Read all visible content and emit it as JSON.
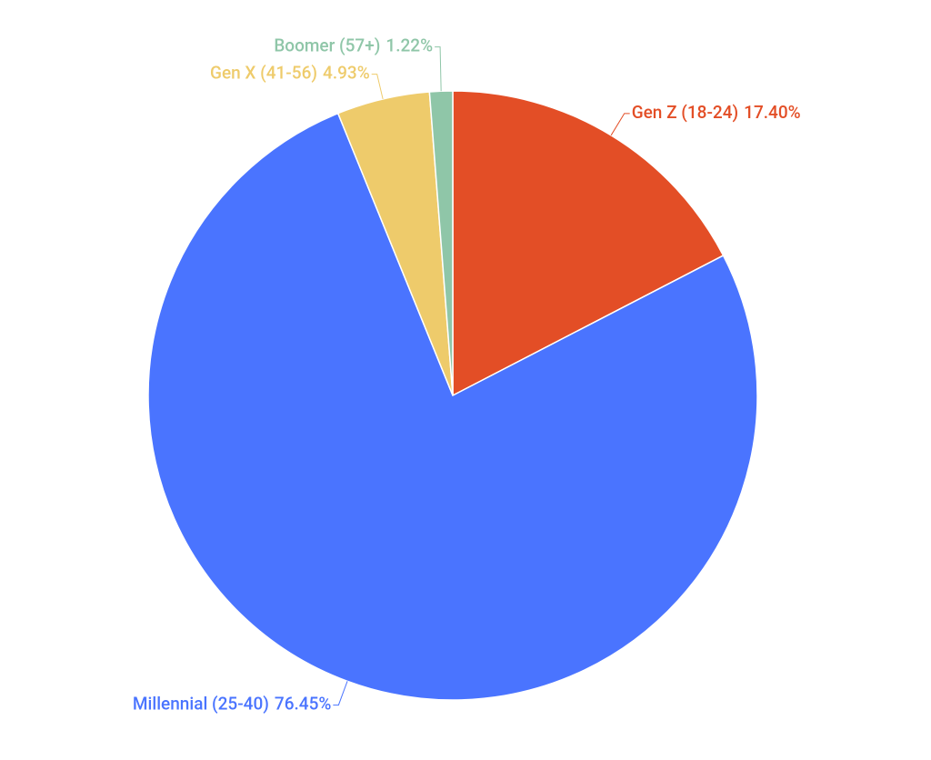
{
  "chart_data": {
    "type": "pie",
    "categories": [
      "Gen Z (18-24)",
      "Millennial (25-40)",
      "Gen X (41-56)",
      "Boomer (57+)"
    ],
    "values": [
      17.4,
      76.45,
      4.93,
      1.22
    ],
    "value_labels": [
      "17.40%",
      "76.45%",
      "4.93%",
      "1.22%"
    ],
    "colors": [
      "#e34e26",
      "#4a74ff",
      "#eecb6b",
      "#8fc6a8"
    ]
  }
}
